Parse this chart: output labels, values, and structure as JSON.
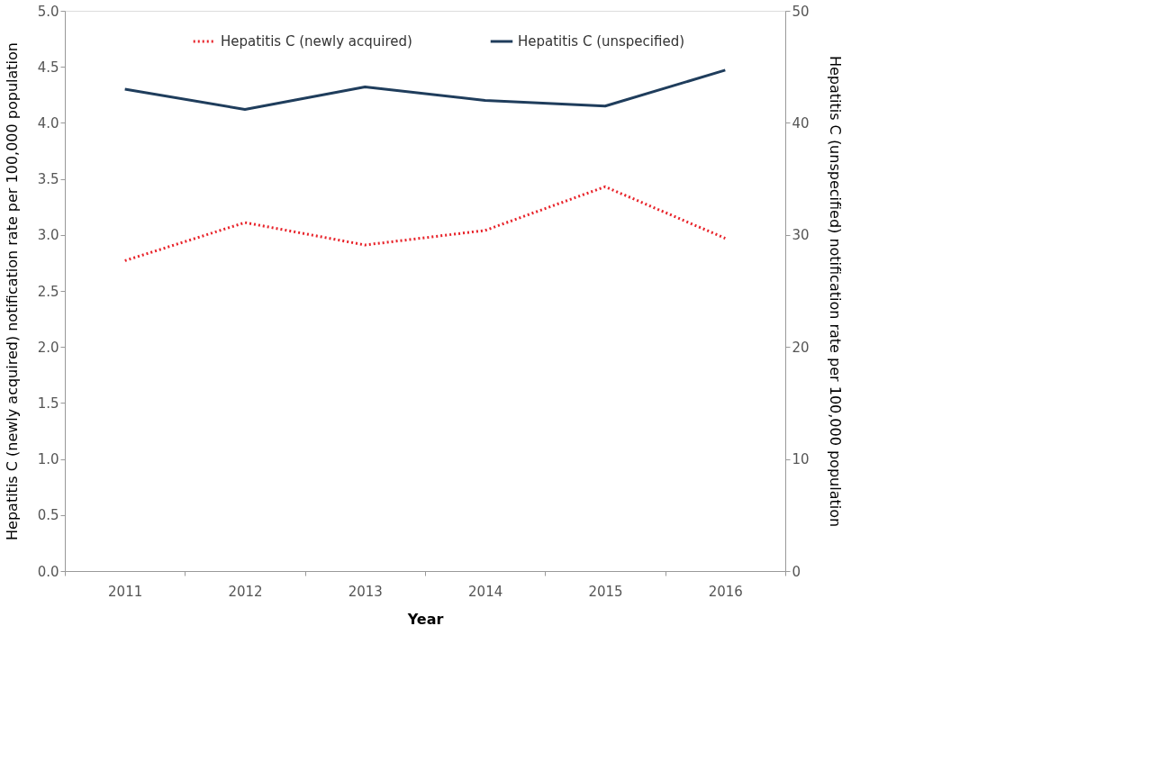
{
  "chart_data": {
    "type": "line",
    "xlabel": "Year",
    "ylabel": "Hepatitis C (newly acquired) notification rate per 100,000 population",
    "y2label": "Hepatitis C (unspecified) notification rate per 100,000 population",
    "categories": [
      "2011",
      "2012",
      "2013",
      "2014",
      "2015",
      "2016"
    ],
    "series": [
      {
        "name": "Hepatitis C (newly acquired)",
        "color": "#e8232a",
        "line_style": "dotted",
        "values": [
          2.77,
          3.11,
          2.91,
          3.04,
          3.43,
          2.97
        ]
      },
      {
        "name": "Hepatitis C (unspecified)",
        "color": "#1f3d5c",
        "line_style": "solid",
        "axis": "y2",
        "values": [
          43.0,
          41.2,
          43.2,
          42.0,
          41.5,
          44.7
        ]
      }
    ],
    "ylim": [
      0,
      5
    ],
    "yticks": [
      {
        "value": 0,
        "label": "0.0"
      },
      {
        "value": 0.5,
        "label": "0.5"
      },
      {
        "value": 1,
        "label": "1.0"
      },
      {
        "value": 1.5,
        "label": "1.5"
      },
      {
        "value": 2,
        "label": "2.0"
      },
      {
        "value": 2.5,
        "label": "2.5"
      },
      {
        "value": 3,
        "label": "3.0"
      },
      {
        "value": 3.5,
        "label": "3.5"
      },
      {
        "value": 4,
        "label": "4.0"
      },
      {
        "value": 4.5,
        "label": "4.5"
      },
      {
        "value": 5,
        "label": "5.0"
      }
    ],
    "y2lim": [
      0,
      50
    ],
    "y2ticks": [
      0,
      10,
      20,
      30,
      40,
      50
    ],
    "grid": false,
    "legend": "top"
  }
}
